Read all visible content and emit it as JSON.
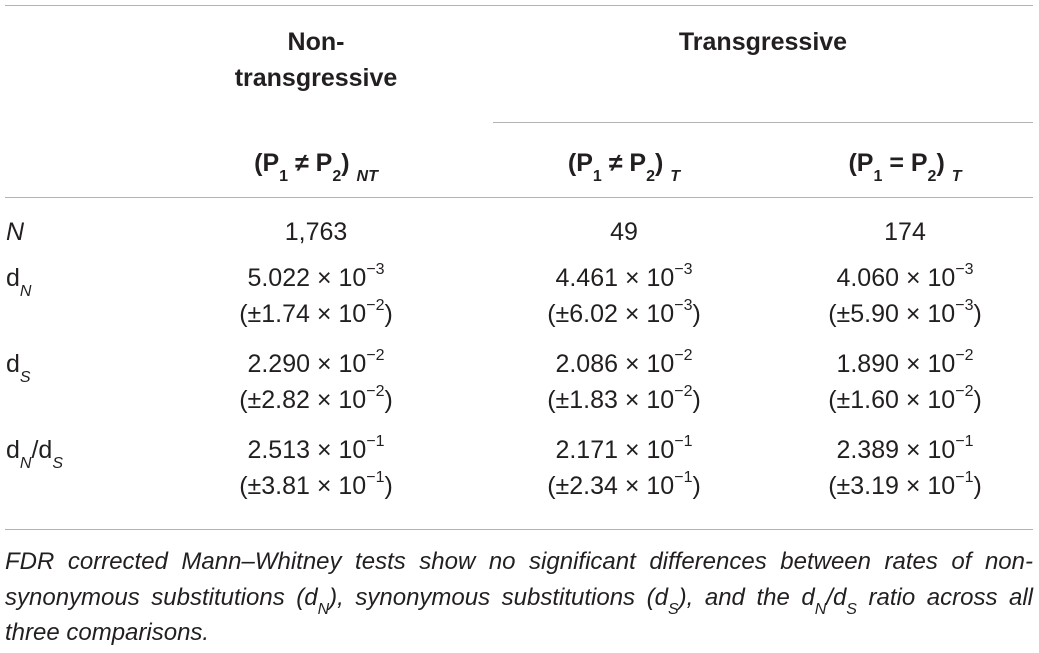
{
  "header": {
    "group1": "Non-transgressive",
    "group1_line1": "Non-",
    "group1_line2": "transgressive",
    "group2": "Transgressive",
    "col1": {
      "lead": "(P",
      "s1": "1",
      "op": " ≠ P",
      "s2": "2",
      "close": ")",
      "tag": "NT"
    },
    "col2": {
      "lead": "(P",
      "s1": "1",
      "op": " ≠ P",
      "s2": "2",
      "close": ")",
      "tag": "T"
    },
    "col3": {
      "lead": "(P",
      "s1": "1",
      "op": " = P",
      "s2": "2",
      "close": ")",
      "tag": "T"
    }
  },
  "rows": [
    {
      "label": "N",
      "values": [
        {
          "main": "1,763"
        },
        {
          "main": "49"
        },
        {
          "main": "174"
        }
      ]
    },
    {
      "label_base": "d",
      "label_sub": "N",
      "values": [
        {
          "main": "5.022 × 10",
          "main_exp": "−3",
          "sd": "(±1.74 × 10",
          "sd_exp": "−2",
          "sd_close": ")"
        },
        {
          "main": "4.461 × 10",
          "main_exp": "−3",
          "sd": "(±6.02 × 10",
          "sd_exp": "−3",
          "sd_close": ")"
        },
        {
          "main": "4.060 × 10",
          "main_exp": "−3",
          "sd": "(±5.90 × 10",
          "sd_exp": "−3",
          "sd_close": ")"
        }
      ]
    },
    {
      "label_base": "d",
      "label_sub": "S",
      "values": [
        {
          "main": "2.290 × 10",
          "main_exp": "−2",
          "sd": "(±2.82 × 10",
          "sd_exp": "−2",
          "sd_close": ")"
        },
        {
          "main": "2.086 × 10",
          "main_exp": "−2",
          "sd": "(±1.83 × 10",
          "sd_exp": "−2",
          "sd_close": ")"
        },
        {
          "main": "1.890 × 10",
          "main_exp": "−2",
          "sd": "(±1.60 × 10",
          "sd_exp": "−2",
          "sd_close": ")"
        }
      ]
    },
    {
      "label_base": "d",
      "label_sub": "N",
      "label_mid": "/d",
      "label_sub2": "S",
      "values": [
        {
          "main": "2.513 × 10",
          "main_exp": "−1",
          "sd": "(±3.81 × 10",
          "sd_exp": "−1",
          "sd_close": ")"
        },
        {
          "main": "2.171 × 10",
          "main_exp": "−1",
          "sd": "(±2.34 × 10",
          "sd_exp": "−1",
          "sd_close": ")"
        },
        {
          "main": "2.389 × 10",
          "main_exp": "−1",
          "sd": "(±3.19 × 10",
          "sd_exp": "−1",
          "sd_close": ")"
        }
      ]
    }
  ],
  "footnote": {
    "t1": "FDR corrected Mann–Whitney tests show no significant differences between rates of non-synonymous substitutions (d",
    "s1": "N",
    "t2": "), synonymous substitutions (d",
    "s2": "S",
    "t3": "), and the d",
    "s3": "N",
    "t4": "/d",
    "s4": "S",
    "t5": " ratio across all three comparisons."
  }
}
